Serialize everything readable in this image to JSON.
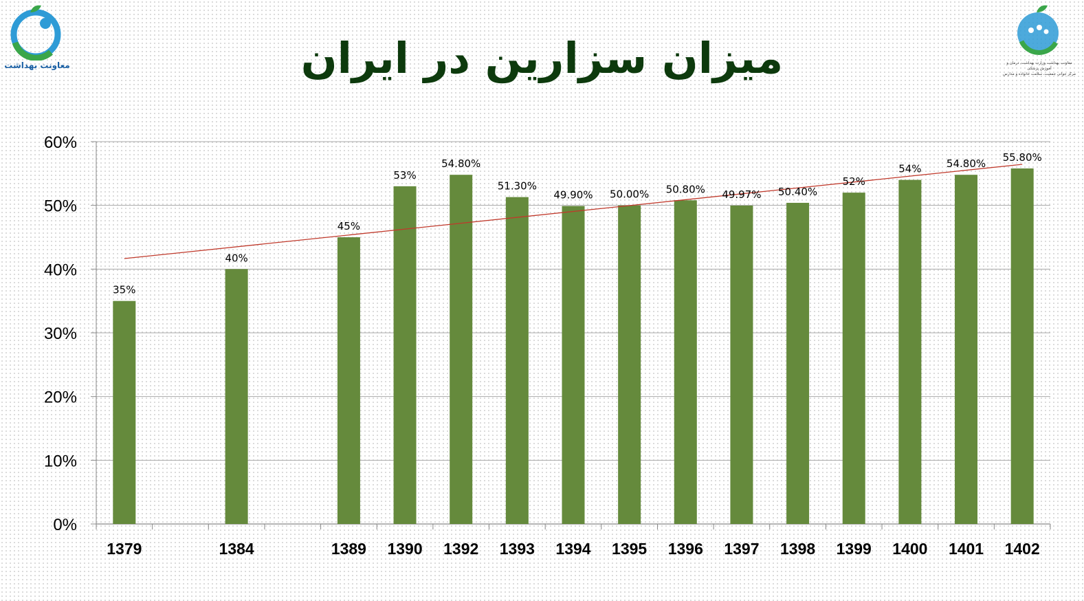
{
  "header": {
    "title": "میزان سزارین در ایران",
    "logo_left_caption": "معاونت بهداشت",
    "logo_right_caption_line1": "معاونت بهداشت وزارت بهداشت، درمان و آموزش پزشکی",
    "logo_right_caption_line2": "مرکز جوانی جمعیت، سلامت خانواده و مدارس"
  },
  "colors": {
    "bar": "#658a3c",
    "trendline": "#c0392b",
    "title": "#0d3a0d"
  },
  "chart_data": {
    "type": "bar",
    "title": "میزان سزارین در ایران",
    "xlabel": "",
    "ylabel": "",
    "ylim": [
      0,
      0.6
    ],
    "y_ticks": [
      "0%",
      "10%",
      "20%",
      "30%",
      "40%",
      "50%",
      "60%"
    ],
    "grid": true,
    "legend": "none",
    "trendline": "linear",
    "categories": [
      "1379",
      "",
      "1384",
      "",
      "1389",
      "1390",
      "1392",
      "1393",
      "1394",
      "1395",
      "1396",
      "1397",
      "1398",
      "1399",
      "1400",
      "1401",
      "1402"
    ],
    "values": [
      0.35,
      null,
      0.4,
      null,
      0.45,
      0.53,
      0.548,
      0.513,
      0.499,
      0.5,
      0.508,
      0.4997,
      0.504,
      0.52,
      0.54,
      0.548,
      0.558
    ],
    "data_labels": [
      "35%",
      "",
      "40%",
      "",
      "45%",
      "53%",
      "54.80%",
      "51.30%",
      "49.90%",
      "50.00%",
      "50.80%",
      "49.97%",
      "50.40%",
      "52%",
      "54%",
      "54.80%",
      "55.80%"
    ]
  }
}
